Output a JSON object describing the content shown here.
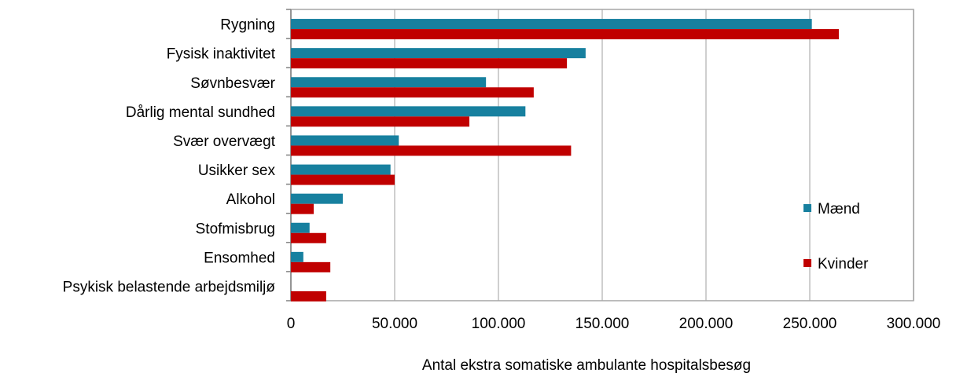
{
  "chart_data": {
    "type": "bar",
    "orientation": "horizontal",
    "x_label": "Antal ekstra somatiske ambulante hospitalsbesøg",
    "categories": [
      "Rygning",
      "Fysisk inaktivitet",
      "Søvnbesvær",
      "Dårlig mental sundhed",
      "Svær overvægt",
      "Usikker sex",
      "Alkohol",
      "Stofmisbrug",
      "Ensomhed",
      "Psykisk belastende arbejdsmiljø"
    ],
    "series": [
      {
        "name": "Mænd",
        "color": "#17809f",
        "values": [
          251000,
          142000,
          94000,
          113000,
          52000,
          48000,
          25000,
          9000,
          6000,
          0
        ]
      },
      {
        "name": "Kvinder",
        "color": "#c00000",
        "values": [
          264000,
          133000,
          117000,
          86000,
          135000,
          50000,
          11000,
          17000,
          19000,
          17000
        ]
      }
    ],
    "xlim": [
      0,
      300000
    ],
    "xticks": [
      0,
      {
        "value": 50000,
        "label": "50.000"
      },
      {
        "value": 100000,
        "label": "100.000"
      },
      {
        "value": 150000,
        "label": "150.000"
      },
      {
        "value": 200000,
        "label": "200.000"
      },
      {
        "value": 250000,
        "label": "250.000"
      },
      {
        "value": 300000,
        "label": "300.000"
      }
    ],
    "grid": true,
    "legend": "right"
  }
}
